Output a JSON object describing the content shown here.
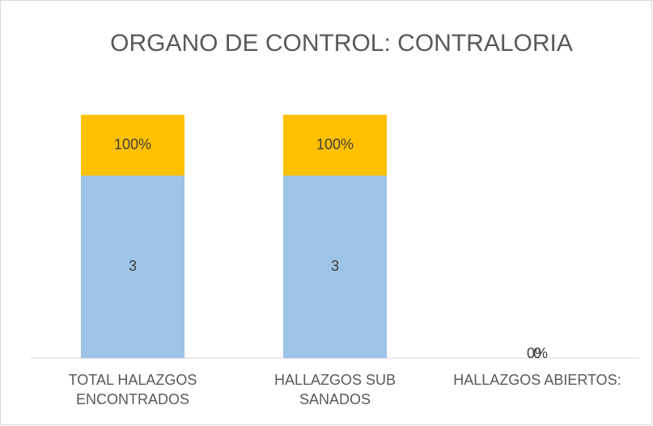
{
  "chart_data": {
    "type": "stacked_bar",
    "title": "ORGANO DE CONTROL: CONTRALORIA",
    "categories": [
      "TOTAL HALAZGOS ENCONTRADOS",
      "HALLAZGOS SUB SANADOS",
      "HALLAZGOS ABIERTOS:"
    ],
    "series": [
      {
        "color": "#9dc3e6",
        "values": [
          3,
          3,
          0
        ]
      },
      {
        "color": "#ffc000",
        "values": [
          1,
          1,
          0
        ],
        "value_labels": [
          "100%",
          "100%",
          "0%"
        ]
      }
    ],
    "ylim": [
      0,
      4
    ],
    "grid": false
  }
}
